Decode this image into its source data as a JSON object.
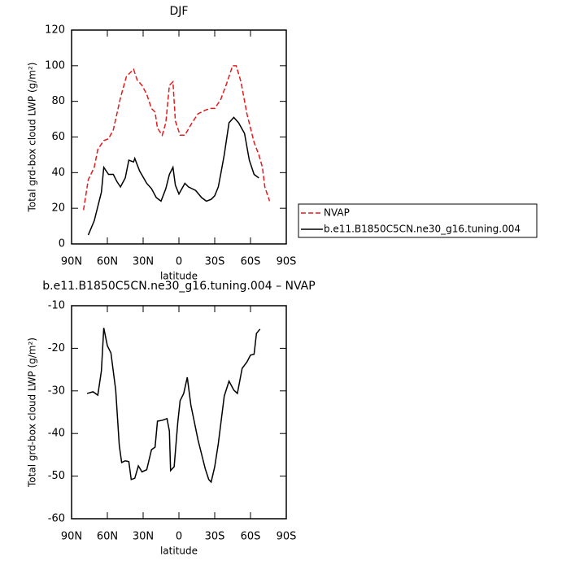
{
  "chart_data": [
    {
      "type": "line",
      "title": "DJF",
      "xlabel": "latitude",
      "ylabel": "Total grd-box cloud LWP (g/m²)",
      "xlim": [
        90,
        -90
      ],
      "xticks": [
        {
          "value": 90,
          "label": "90N"
        },
        {
          "value": 60,
          "label": "60N"
        },
        {
          "value": 30,
          "label": "30N"
        },
        {
          "value": 0,
          "label": "0"
        },
        {
          "value": -30,
          "label": "30S"
        },
        {
          "value": -60,
          "label": "60S"
        },
        {
          "value": -90,
          "label": "90S"
        }
      ],
      "ylim": [
        0,
        120
      ],
      "yticks": [
        0,
        20,
        40,
        60,
        80,
        100,
        120
      ],
      "legend": "right",
      "series": [
        {
          "name": "NVAP",
          "color": "#e41a1c",
          "dash": true,
          "x": [
            80,
            76,
            71,
            68,
            63,
            59,
            55,
            49,
            44,
            38,
            35,
            31,
            27,
            23,
            20,
            18,
            14,
            11,
            8,
            5,
            3,
            -1,
            -5,
            -11,
            -16,
            -22,
            -26,
            -30,
            -35,
            -40,
            -45,
            -48,
            -52,
            -57,
            -63,
            -67,
            -70,
            -72,
            -76
          ],
          "values": [
            19,
            36,
            43,
            53,
            58,
            59,
            64,
            82,
            94,
            98,
            92,
            89,
            84,
            76,
            74,
            65,
            61,
            68,
            89,
            91,
            69,
            61,
            61,
            68,
            73,
            75,
            76,
            76,
            81,
            90,
            100,
            100,
            91,
            73,
            57,
            50,
            43,
            32,
            24
          ]
        },
        {
          "name": "b.e11.B1850C5CN.ne30_g16.tuning.004",
          "color": "#000000",
          "dash": false,
          "x": [
            76,
            71,
            65,
            63,
            59,
            55,
            52,
            49,
            45,
            42,
            38,
            37,
            33,
            27,
            23,
            19,
            15,
            11,
            8,
            5,
            3,
            0,
            -5,
            -8,
            -14,
            -19,
            -23,
            -27,
            -30,
            -33,
            -35,
            -38,
            -42,
            -46,
            -50,
            -55,
            -59,
            -63,
            -67
          ],
          "values": [
            5,
            13,
            29,
            43,
            39,
            39,
            35,
            32,
            37,
            47,
            46,
            48,
            41,
            34,
            31,
            26,
            24,
            31,
            39,
            43,
            33,
            28,
            34,
            32,
            30,
            26,
            24,
            25,
            27,
            32,
            39,
            50,
            68,
            71,
            68,
            62,
            47,
            39,
            37
          ]
        }
      ]
    },
    {
      "type": "line",
      "title": "b.e11.B1850C5CN.ne30_g16.tuning.004 – NVAP",
      "xlabel": "latitude",
      "ylabel": "Total grd-box cloud LWP (g/m²)",
      "xlim": [
        90,
        -90
      ],
      "xticks": [
        {
          "value": 90,
          "label": "90N"
        },
        {
          "value": 60,
          "label": "60N"
        },
        {
          "value": 30,
          "label": "30N"
        },
        {
          "value": 0,
          "label": "0"
        },
        {
          "value": -30,
          "label": "30S"
        },
        {
          "value": -60,
          "label": "60S"
        },
        {
          "value": -90,
          "label": "90S"
        }
      ],
      "ylim": [
        -60,
        -10
      ],
      "yticks": [
        -60,
        -50,
        -40,
        -30,
        -20,
        -10
      ],
      "series": [
        {
          "color": "#000000",
          "dash": false,
          "x": [
            77,
            72,
            68,
            65,
            63,
            60,
            57,
            53,
            50,
            48,
            45,
            42,
            40,
            37,
            34,
            31,
            27,
            23,
            20,
            18,
            14,
            10,
            8,
            7,
            4,
            1,
            -1,
            -4,
            -7,
            -10,
            -16,
            -22,
            -25,
            -27,
            -30,
            -33,
            -38,
            -42,
            -46,
            -49,
            -53,
            -57,
            -60,
            -63,
            -65,
            -68
          ],
          "values": [
            -30.6,
            -30.2,
            -31,
            -25.3,
            -15.2,
            -19.4,
            -21.1,
            -29.8,
            -42.8,
            -46.8,
            -46.4,
            -46.6,
            -50.8,
            -50.5,
            -47.6,
            -49,
            -48.5,
            -43.8,
            -43.2,
            -37.1,
            -36.9,
            -36.5,
            -39.4,
            -48.7,
            -47.8,
            -37.5,
            -32.3,
            -30.6,
            -26.8,
            -33.3,
            -41.5,
            -48.2,
            -50.8,
            -51.4,
            -47.8,
            -42.4,
            -31.2,
            -27.7,
            -29.8,
            -30.6,
            -24.7,
            -23.2,
            -21.6,
            -21.4,
            -16.5,
            -15.5
          ]
        }
      ]
    }
  ]
}
